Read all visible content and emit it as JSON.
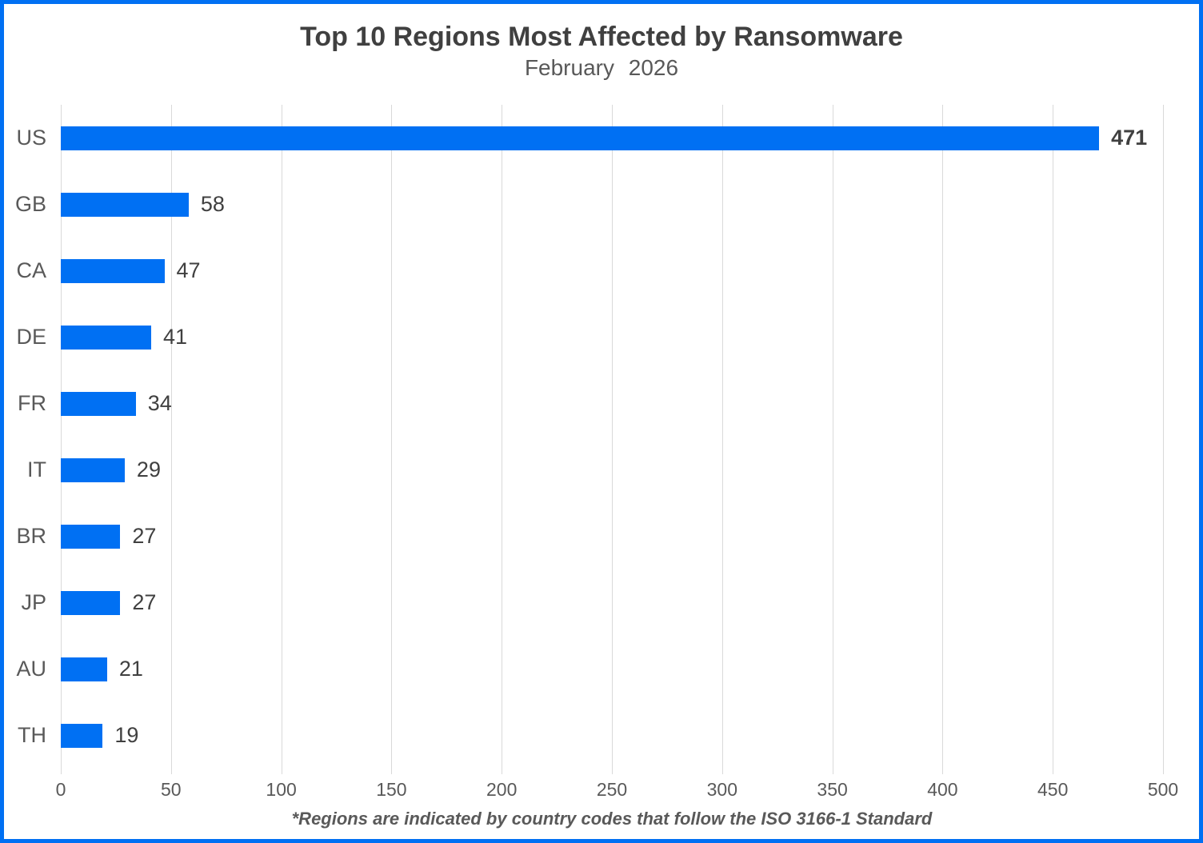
{
  "chart_data": {
    "type": "bar",
    "orientation": "horizontal",
    "title": "Top 10 Regions Most Affected by Ransomware",
    "subtitle": "February 2026",
    "categories": [
      "US",
      "GB",
      "CA",
      "DE",
      "FR",
      "IT",
      "BR",
      "JP",
      "AU",
      "TH"
    ],
    "values": [
      471,
      58,
      47,
      41,
      34,
      29,
      27,
      27,
      21,
      19
    ],
    "value_labels": [
      "471",
      "58",
      "47",
      "41",
      "34",
      "29",
      "27",
      "27",
      "21",
      "19"
    ],
    "emphasized_value_index": 0,
    "xlim": [
      0,
      500
    ],
    "x_ticks": [
      0,
      50,
      100,
      150,
      200,
      250,
      300,
      350,
      400,
      450,
      500
    ],
    "grid": true,
    "legend": "none",
    "footnote": "*Regions are indicated by country codes that follow the ISO 3166-1 Standard"
  },
  "colors": {
    "bar": "#0070F3",
    "frame_border": "#0070F3",
    "gridline": "#D9D9D9",
    "title_text": "#404040",
    "subtitle_text": "#595959",
    "category_text": "#595959",
    "value_text": "#404040",
    "tick_text": "#595959",
    "footnote_text": "#595959"
  }
}
